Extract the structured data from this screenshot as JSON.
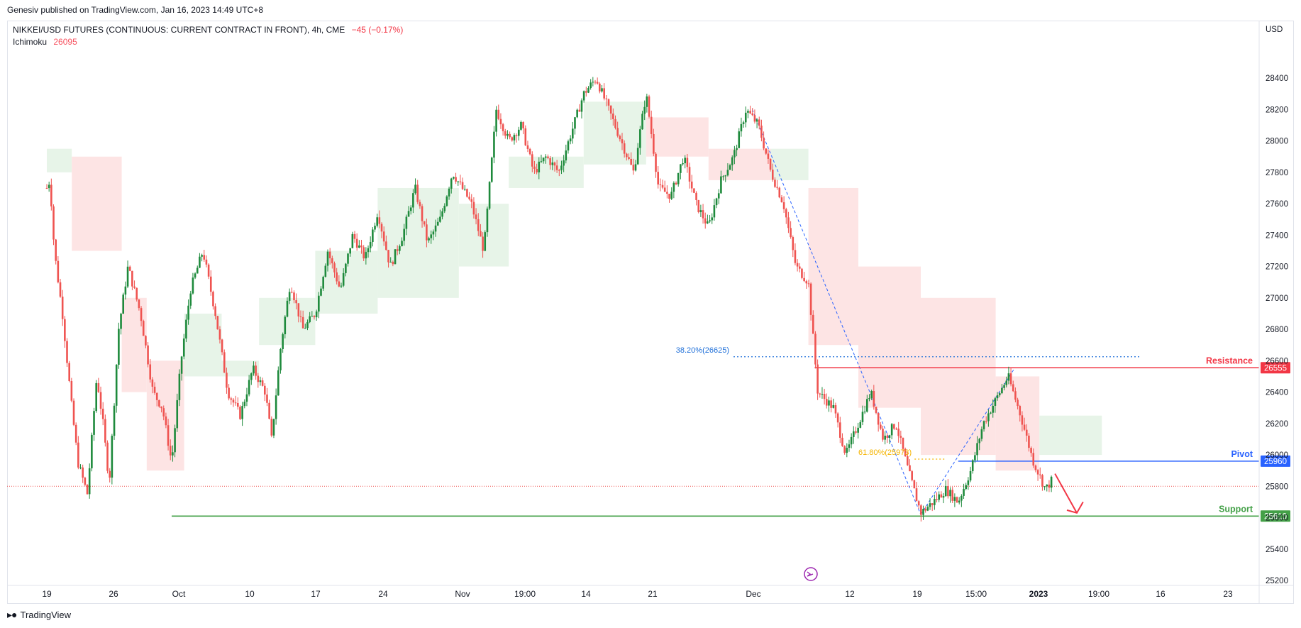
{
  "header": {
    "published": "Genesiv published on TradingView.com, Jan 16, 2023 14:49 UTC+8"
  },
  "legend": {
    "symbol": "NIKKEI/USD FUTURES (CONTINUOUS: CURRENT CONTRACT IN FRONT), 4h, CME",
    "change": "−45 (−0.17%)",
    "indicator": "Ichimoku",
    "indicator_value": "26095"
  },
  "footer": {
    "brand": "TradingView"
  },
  "colors": {
    "up": "#26a69a",
    "upDark": "#1e8a3c",
    "down": "#ef5350",
    "resistance": "#f23645",
    "pivot": "#2962ff",
    "support": "#43a047",
    "cloudBull": "#e7f4e8",
    "cloudBear": "#fde4e4",
    "fib": "#1e6fd9",
    "fib618": "#f5b400"
  },
  "chart_data": {
    "type": "candlestick",
    "y_unit": "USD",
    "ylim": [
      25200,
      28500
    ],
    "y_ticks": [
      25200,
      25400,
      25600,
      25800,
      26000,
      26200,
      26400,
      26600,
      26800,
      27000,
      27200,
      27400,
      27600,
      27800,
      28000,
      28200,
      28400
    ],
    "x_ticks": [
      {
        "label": "19",
        "i": 0
      },
      {
        "label": "26",
        "i": 1
      },
      {
        "label": "Oct",
        "i": 2
      },
      {
        "label": "10",
        "i": 3
      },
      {
        "label": "17",
        "i": 4
      },
      {
        "label": "24",
        "i": 5
      },
      {
        "label": "Nov",
        "i": 6
      },
      {
        "label": "19:00",
        "i": 7
      },
      {
        "label": "14",
        "i": 8
      },
      {
        "label": "21",
        "i": 9
      },
      {
        "label": "Dec",
        "i": 10
      },
      {
        "label": "12",
        "i": 11
      },
      {
        "label": "19",
        "i": 12
      },
      {
        "label": "15:00",
        "i": 13
      },
      {
        "label": "2023",
        "i": 14,
        "bold": true
      },
      {
        "label": "19:00",
        "i": 15
      },
      {
        "label": "16",
        "i": 16
      },
      {
        "label": "23",
        "i": 17
      }
    ],
    "price_path": [
      [
        0,
        27700
      ],
      [
        0.05,
        27750
      ],
      [
        0.12,
        27300
      ],
      [
        0.25,
        26900
      ],
      [
        0.4,
        26300
      ],
      [
        0.5,
        25950
      ],
      [
        0.65,
        25750
      ],
      [
        0.8,
        26500
      ],
      [
        0.9,
        26200
      ],
      [
        1.0,
        25820
      ],
      [
        1.15,
        26800
      ],
      [
        1.3,
        27200
      ],
      [
        1.5,
        26900
      ],
      [
        1.7,
        26400
      ],
      [
        1.85,
        26300
      ],
      [
        2.0,
        25950
      ],
      [
        2.15,
        26600
      ],
      [
        2.3,
        27050
      ],
      [
        2.5,
        27300
      ],
      [
        2.7,
        26900
      ],
      [
        2.9,
        26400
      ],
      [
        3.1,
        26250
      ],
      [
        3.3,
        26550
      ],
      [
        3.5,
        26400
      ],
      [
        3.6,
        26100
      ],
      [
        3.75,
        26700
      ],
      [
        3.9,
        27100
      ],
      [
        4.1,
        26800
      ],
      [
        4.3,
        26900
      ],
      [
        4.5,
        27300
      ],
      [
        4.7,
        27050
      ],
      [
        4.9,
        27400
      ],
      [
        5.1,
        27250
      ],
      [
        5.3,
        27550
      ],
      [
        5.5,
        27200
      ],
      [
        5.7,
        27400
      ],
      [
        5.9,
        27700
      ],
      [
        6.1,
        27350
      ],
      [
        6.3,
        27500
      ],
      [
        6.5,
        27800
      ],
      [
        6.8,
        27600
      ],
      [
        7.0,
        27300
      ],
      [
        7.2,
        28200
      ],
      [
        7.4,
        28000
      ],
      [
        7.6,
        28100
      ],
      [
        7.8,
        27800
      ],
      [
        8.0,
        27900
      ],
      [
        8.2,
        27800
      ],
      [
        8.4,
        28050
      ],
      [
        8.6,
        28300
      ],
      [
        8.8,
        28400
      ],
      [
        9.0,
        28200
      ],
      [
        9.2,
        28000
      ],
      [
        9.4,
        27800
      ],
      [
        9.6,
        28300
      ],
      [
        9.8,
        27700
      ],
      [
        10.0,
        27650
      ],
      [
        10.2,
        27900
      ],
      [
        10.4,
        27600
      ],
      [
        10.6,
        27450
      ],
      [
        10.8,
        27750
      ],
      [
        11.0,
        27900
      ],
      [
        11.2,
        28200
      ],
      [
        11.4,
        28100
      ],
      [
        11.6,
        27800
      ],
      [
        11.8,
        27600
      ],
      [
        12.0,
        27200
      ],
      [
        12.2,
        27100
      ],
      [
        12.35,
        26400
      ],
      [
        12.6,
        26300
      ],
      [
        12.8,
        26000
      ],
      [
        13.0,
        26200
      ],
      [
        13.2,
        26400
      ],
      [
        13.4,
        26100
      ],
      [
        13.6,
        26200
      ],
      [
        13.8,
        25900
      ],
      [
        14.0,
        25630
      ],
      [
        14.2,
        25700
      ],
      [
        14.4,
        25780
      ],
      [
        14.6,
        25700
      ],
      [
        14.8,
        25900
      ],
      [
        15.0,
        26200
      ],
      [
        15.2,
        26350
      ],
      [
        15.4,
        26500
      ],
      [
        15.6,
        26250
      ],
      [
        15.8,
        25960
      ],
      [
        16.0,
        25780
      ],
      [
        16.1,
        25840
      ]
    ],
    "ichimoku_cloud": [
      {
        "from": 0.0,
        "to": 0.4,
        "top": 27950,
        "bottom": 27800,
        "type": "bull"
      },
      {
        "from": 0.4,
        "to": 1.2,
        "top": 27900,
        "bottom": 27300,
        "type": "bear"
      },
      {
        "from": 1.2,
        "to": 1.6,
        "top": 27000,
        "bottom": 26400,
        "type": "bear"
      },
      {
        "from": 1.6,
        "to": 2.2,
        "top": 26600,
        "bottom": 25900,
        "type": "bear"
      },
      {
        "from": 2.2,
        "to": 2.8,
        "top": 26900,
        "bottom": 26500,
        "type": "bull"
      },
      {
        "from": 2.8,
        "to": 3.4,
        "top": 26600,
        "bottom": 26500,
        "type": "bull"
      },
      {
        "from": 3.4,
        "to": 4.3,
        "top": 27000,
        "bottom": 26700,
        "type": "bull"
      },
      {
        "from": 4.3,
        "to": 5.3,
        "top": 27300,
        "bottom": 26900,
        "type": "bull"
      },
      {
        "from": 5.3,
        "to": 6.6,
        "top": 27700,
        "bottom": 27000,
        "type": "bull"
      },
      {
        "from": 6.6,
        "to": 7.4,
        "top": 27600,
        "bottom": 27200,
        "type": "bull"
      },
      {
        "from": 7.4,
        "to": 8.6,
        "top": 27900,
        "bottom": 27700,
        "type": "bull"
      },
      {
        "from": 8.6,
        "to": 9.6,
        "top": 28250,
        "bottom": 27850,
        "type": "bull"
      },
      {
        "from": 9.6,
        "to": 10.6,
        "top": 28150,
        "bottom": 27900,
        "type": "bear"
      },
      {
        "from": 10.6,
        "to": 11.6,
        "top": 27950,
        "bottom": 27750,
        "type": "bear"
      },
      {
        "from": 11.6,
        "to": 12.2,
        "top": 27950,
        "bottom": 27750,
        "type": "bull"
      },
      {
        "from": 12.2,
        "to": 13.0,
        "top": 27700,
        "bottom": 26700,
        "type": "bear"
      },
      {
        "from": 13.0,
        "to": 14.0,
        "top": 27200,
        "bottom": 26300,
        "type": "bear"
      },
      {
        "from": 14.0,
        "to": 15.2,
        "top": 27000,
        "bottom": 26000,
        "type": "bear"
      },
      {
        "from": 15.2,
        "to": 15.9,
        "top": 26500,
        "bottom": 25900,
        "type": "bear"
      },
      {
        "from": 15.9,
        "to": 16.9,
        "top": 26250,
        "bottom": 26000,
        "type": "bull"
      }
    ],
    "levels": [
      {
        "name": "Resistance",
        "value": 26555,
        "label": "26555",
        "color_key": "resistance",
        "from": 12.3
      },
      {
        "name": "Pivot",
        "value": 25960,
        "label": "25960",
        "color_key": "pivot",
        "from": 14.6
      },
      {
        "name": "Support",
        "value": 25610,
        "label": "25610",
        "color_key": "support",
        "from": 2.0
      }
    ],
    "fib_lines": [
      {
        "label": "38.20%(26625)",
        "value": 26625,
        "from": 11.0,
        "to": 17.5
      },
      {
        "label": "61.80%(25973)",
        "value": 25973,
        "from": 13.9,
        "to": 14.4
      }
    ],
    "last_price": 25800,
    "projection_arrow": {
      "from": [
        16.15,
        25880
      ],
      "mid": [
        16.5,
        25630
      ],
      "to": [
        16.6,
        25700
      ]
    },
    "trend_lines": [
      {
        "from": [
          11.3,
          28200
        ],
        "to": [
          14.0,
          25620
        ]
      },
      {
        "from": [
          14.0,
          25620
        ],
        "to": [
          15.5,
          26550
        ]
      }
    ]
  }
}
